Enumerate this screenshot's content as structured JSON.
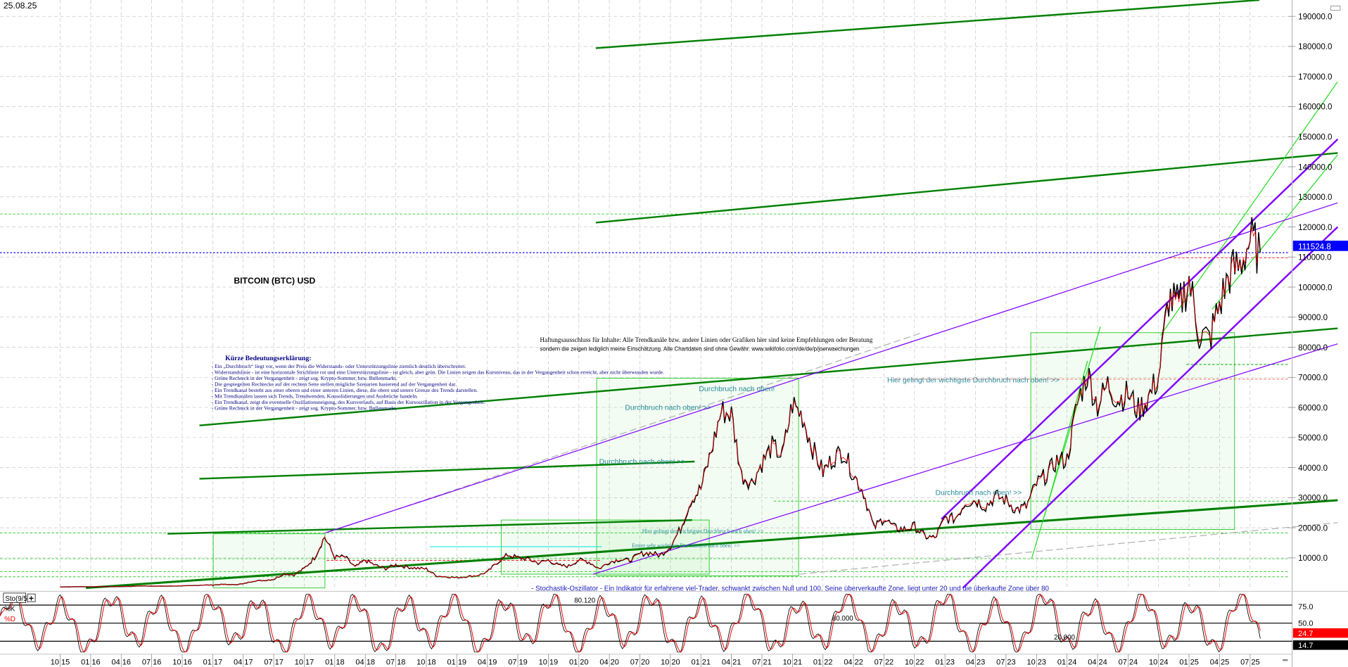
{
  "header": {
    "date": "25.08.25",
    "title": "BITCOIN (BTC) USD"
  },
  "colors": {
    "price": "#000000",
    "price_alt": "#ff0000",
    "accent_blue": "#0000ff",
    "trend_green": "#008000",
    "trend_purple": "#8000ff",
    "annotation_teal": "#2a8a9a",
    "legend_navy": "#000080"
  },
  "legend": {
    "title": "Kürze Bedeutungserklärung:",
    "lines": [
      "- Ein „Durchbruch“ liegt vor, wenn der Preis die Widerstands- oder Unterstützungslinie ziemlich deutlich überschreitet.",
      "- Widerstandslinie - ist eine horizontale Strichlinie rot und eine Unterstützungslinie - ist gleich, aber grün. Die Linien zeigen das Kursniveau, das in der Vergangenheit schon erreicht, aber nicht überwunden wurde.",
      "- Grüne Rechteck in der Vergangenheit - zeigt sog. Krypto-Sommer, bzw. Bullenmarkt.",
      "- Die gespiegelten Rechtecke auf der rechten Seite stellen mögliche Szenarien basierend auf der Vergangenheit dar.",
      "- Ein Trendkanal besteht aus einer oberen und einer unteren Linien, diese, die obere und untere Grenze des Trends darstellen.",
      "- Mit Trendkanälen lassen sich Trends, Trendwenden, Konsolidierungen und Ausbrüche handeln.",
      "- Ein Trendkanal, zeigt die eventuelle Oszillationsneigung, des Kursverlaufs, auf Basis der Kursoszillation in der Vergangenheit.",
      "- Grüne Rechteck in der Vergangenheit - zeigt sog. Krypto-Sommer, bzw. Bullenmarkt."
    ]
  },
  "disclaimer": {
    "line1": "Haftungsausschluss für Inhalte: Alle Trendkanäle bzw. andere Linien oder Grafiken hier sind keine Empfehlungen oder Beratung",
    "line2": "sondern die zeigen lediglich meine Einschätzung. Alle Chartdaten sind ohne Gewähr. www.wikifolio.com/de/de/p/joerwaechungen"
  },
  "annotations": {
    "breakout_1": "Durchbruch nach oben! >>",
    "breakout_2": "Durchbruch nach oben! >>",
    "breakout_3": "Durchbruch nach oben!",
    "breakout_4": "Durchbruch nach oben! >>",
    "most_important": "Hier gelingt der wichtigste Durchbruch nach oben! >>",
    "most_important_small": "Hier gelingt der wichtigste Durchbruch nach oben! >>",
    "first_important": "Erster sehr wichtiger Durchbruch nach oben! >>",
    "stochastic_note": "- Stochastik-Oszillator - Ein Indikator für erfahrene viel-Trader, schwankt zwischen Null und 100. Seine überverkaufte Zone, liegt unter 20 und die überkaufte Zone über 80",
    "level_80120": "80.120",
    "level_80000": "80.000",
    "level_20000": "20.000"
  },
  "indicator": {
    "name": "Sto(9/5)",
    "k_label": "%K",
    "d_label": "%D",
    "add_button": "+",
    "levels": [
      "75.0",
      "50.0"
    ],
    "k_value": "24.7",
    "d_value": "14.7"
  },
  "chart_data": {
    "type": "line",
    "title": "BITCOIN (BTC) USD",
    "start_month": "2015-10",
    "y_ticks": [
      "190000.0",
      "180000.0",
      "170000.0",
      "160000.0",
      "150000.0",
      "140000.0",
      "130000.0",
      "120000.0",
      "110000.0",
      "100000.0",
      "90000.0",
      "80000.0",
      "70000.0",
      "60000.0",
      "50000.0",
      "40000.0",
      "30000.0",
      "20000.0",
      "10000.0"
    ],
    "ylim": [
      0,
      190000
    ],
    "last_price": "111524.8",
    "x_ticks": [
      "10 15",
      "01 16",
      "04 16",
      "07 16",
      "10 16",
      "01 17",
      "04 17",
      "07 17",
      "10 17",
      "01 18",
      "04 18",
      "07 18",
      "10 18",
      "01 19",
      "04 19",
      "07 19",
      "10 19",
      "01 20",
      "04 20",
      "07 20",
      "10 20",
      "01 21",
      "04 21",
      "07 21",
      "10 21",
      "01 22",
      "04 22",
      "07 22",
      "10 22",
      "01 23",
      "04 23",
      "07 23",
      "10 23",
      "01 24",
      "04 24",
      "07 24",
      "10 24",
      "01 25",
      "04 25",
      "07 25"
    ],
    "monthly_close": [
      310,
      380,
      430,
      370,
      440,
      415,
      450,
      530,
      670,
      625,
      575,
      610,
      700,
      740,
      960,
      970,
      1190,
      1080,
      1350,
      2300,
      2480,
      2880,
      4700,
      4340,
      6450,
      10000,
      17000,
      10200,
      10300,
      6900,
      9200,
      7500,
      6400,
      7700,
      7000,
      6600,
      6300,
      4000,
      3700,
      3400,
      3800,
      4100,
      5300,
      8500,
      11000,
      10000,
      9600,
      8300,
      9200,
      7500,
      7200,
      9350,
      8600,
      6400,
      8600,
      9450,
      9150,
      11300,
      11650,
      10800,
      13800,
      19700,
      29000,
      33100,
      45200,
      58800,
      57700,
      37300,
      35000,
      41500,
      47100,
      43800,
      61300,
      57000,
      46300,
      38500,
      43200,
      45500,
      37700,
      31800,
      19900,
      23300,
      20000,
      19400,
      20500,
      17200,
      16500,
      23100,
      23100,
      28500,
      29200,
      27200,
      30500,
      29200,
      26000,
      27000,
      34600,
      37700,
      42300,
      42600,
      61200,
      71300,
      60700,
      67500,
      62700,
      64600,
      58900,
      63300,
      70200,
      96400,
      93400,
      102400,
      84400,
      82500,
      94200,
      104600,
      107100,
      115800,
      111500
    ]
  }
}
